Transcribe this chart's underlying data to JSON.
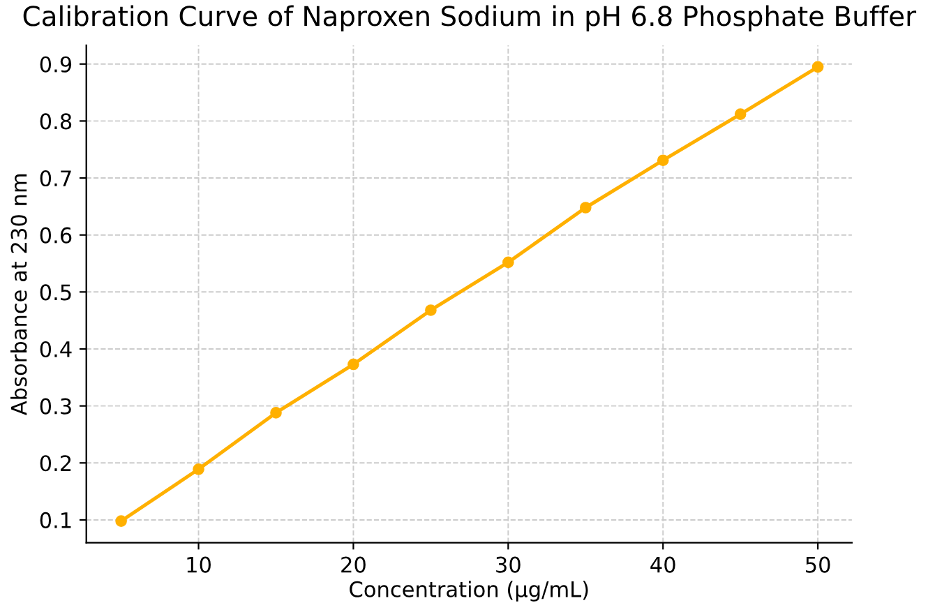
{
  "chart_data": {
    "type": "line",
    "title": "Calibration Curve of Naproxen Sodium in pH 6.8 Phosphate Buffer",
    "xlabel": "Concentration (µg/mL)",
    "ylabel": "Absorbance at 230 nm",
    "x": [
      5,
      10,
      15,
      20,
      25,
      30,
      35,
      40,
      45,
      50
    ],
    "series": [
      {
        "color": "#ffb000",
        "values": [
          0.098,
          0.189,
          0.288,
          0.373,
          0.468,
          0.552,
          0.648,
          0.731,
          0.812,
          0.895
        ]
      }
    ],
    "xlim": [
      2.75,
      52.2
    ],
    "ylim": [
      0.06,
      0.933
    ],
    "xticks": [
      10,
      20,
      30,
      40,
      50
    ],
    "yticks": [
      0.1,
      0.2,
      0.3,
      0.4,
      0.5,
      0.6,
      0.7,
      0.8,
      0.9
    ],
    "grid": true,
    "marker": "circle",
    "line_style": "solid"
  }
}
